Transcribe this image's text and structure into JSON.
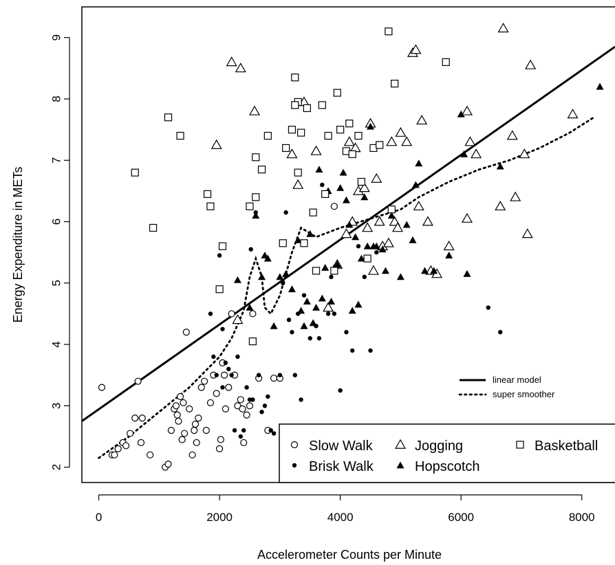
{
  "chart_data": {
    "type": "scatter",
    "title": "",
    "xlabel": "Accelerometer Counts per Minute",
    "ylabel": "Energy Expenditure in METs",
    "xlim": [
      -280,
      8550
    ],
    "ylim": [
      1.75,
      9.5
    ],
    "x_ticks": [
      0,
      2000,
      4000,
      6000,
      8000
    ],
    "x_tick_labels": [
      "0",
      "2000",
      "4000",
      "6000",
      "8000"
    ],
    "y_ticks": [
      2,
      3,
      4,
      5,
      6,
      7,
      8,
      9
    ],
    "y_tick_labels": [
      "2",
      "3",
      "4",
      "5",
      "6",
      "7",
      "8",
      "9"
    ],
    "grid": false,
    "series": [
      {
        "name": "Slow Walk",
        "marker": "open-circle",
        "points": [
          [
            50,
            3.3
          ],
          [
            220,
            2.2
          ],
          [
            260,
            2.2
          ],
          [
            320,
            2.3
          ],
          [
            400,
            2.4
          ],
          [
            450,
            2.35
          ],
          [
            520,
            2.55
          ],
          [
            600,
            2.8
          ],
          [
            650,
            3.4
          ],
          [
            700,
            2.4
          ],
          [
            720,
            2.8
          ],
          [
            850,
            2.2
          ],
          [
            1100,
            2.0
          ],
          [
            1150,
            2.05
          ],
          [
            1200,
            2.6
          ],
          [
            1250,
            2.95
          ],
          [
            1280,
            3.0
          ],
          [
            1300,
            2.85
          ],
          [
            1320,
            2.75
          ],
          [
            1350,
            3.15
          ],
          [
            1380,
            2.45
          ],
          [
            1400,
            3.05
          ],
          [
            1420,
            2.55
          ],
          [
            1450,
            4.2
          ],
          [
            1500,
            2.95
          ],
          [
            1550,
            2.2
          ],
          [
            1580,
            2.6
          ],
          [
            1600,
            2.7
          ],
          [
            1620,
            2.4
          ],
          [
            1650,
            2.8
          ],
          [
            1700,
            3.3
          ],
          [
            1750,
            3.4
          ],
          [
            1780,
            2.6
          ],
          [
            1850,
            3.05
          ],
          [
            1900,
            3.5
          ],
          [
            1950,
            3.2
          ],
          [
            2000,
            2.3
          ],
          [
            2020,
            2.45
          ],
          [
            2050,
            3.7
          ],
          [
            2080,
            3.5
          ],
          [
            2100,
            2.95
          ],
          [
            2150,
            3.3
          ],
          [
            2200,
            4.5
          ],
          [
            2250,
            3.5
          ],
          [
            2300,
            3.0
          ],
          [
            2350,
            3.1
          ],
          [
            2380,
            2.95
          ],
          [
            2400,
            2.4
          ],
          [
            2450,
            2.85
          ],
          [
            2500,
            3.0
          ],
          [
            2550,
            4.5
          ],
          [
            2650,
            3.45
          ],
          [
            2800,
            2.6
          ],
          [
            2900,
            3.45
          ],
          [
            3000,
            3.45
          ],
          [
            3900,
            6.25
          ]
        ]
      },
      {
        "name": "Brisk Walk",
        "marker": "filled-circle",
        "points": [
          [
            1850,
            4.5
          ],
          [
            1900,
            3.8
          ],
          [
            1950,
            3.5
          ],
          [
            2050,
            3.3
          ],
          [
            2100,
            3.7
          ],
          [
            2150,
            3.6
          ],
          [
            2200,
            3.5
          ],
          [
            2250,
            2.6
          ],
          [
            2300,
            3.8
          ],
          [
            2350,
            2.5
          ],
          [
            2400,
            2.6
          ],
          [
            2450,
            3.3
          ],
          [
            2500,
            3.1
          ],
          [
            2520,
            5.55
          ],
          [
            2550,
            3.1
          ],
          [
            2600,
            6.15
          ],
          [
            2650,
            3.5
          ],
          [
            2700,
            2.9
          ],
          [
            2750,
            3.0
          ],
          [
            2800,
            3.15
          ],
          [
            2850,
            2.6
          ],
          [
            2900,
            2.55
          ],
          [
            3000,
            3.5
          ],
          [
            3050,
            5.0
          ],
          [
            3100,
            6.15
          ],
          [
            3150,
            4.4
          ],
          [
            3200,
            4.2
          ],
          [
            3250,
            3.5
          ],
          [
            3300,
            4.5
          ],
          [
            3350,
            3.1
          ],
          [
            3400,
            4.8
          ],
          [
            3500,
            4.1
          ],
          [
            3600,
            4.3
          ],
          [
            3650,
            4.1
          ],
          [
            3700,
            6.6
          ],
          [
            3800,
            4.5
          ],
          [
            3850,
            5.1
          ],
          [
            3900,
            4.5
          ],
          [
            4000,
            3.25
          ],
          [
            4100,
            4.2
          ],
          [
            4200,
            3.9
          ],
          [
            4300,
            5.6
          ],
          [
            4400,
            5.1
          ],
          [
            4500,
            3.9
          ],
          [
            4600,
            5.5
          ],
          [
            6450,
            4.6
          ],
          [
            6650,
            4.2
          ],
          [
            2000,
            5.45
          ],
          [
            2050,
            4.25
          ]
        ]
      },
      {
        "name": "Jogging",
        "marker": "open-triangle",
        "points": [
          [
            1950,
            7.25
          ],
          [
            2200,
            8.6
          ],
          [
            2350,
            8.5
          ],
          [
            2580,
            7.8
          ],
          [
            3200,
            7.1
          ],
          [
            3300,
            6.6
          ],
          [
            3400,
            7.95
          ],
          [
            3600,
            7.15
          ],
          [
            3800,
            4.6
          ],
          [
            3950,
            5.3
          ],
          [
            4100,
            5.8
          ],
          [
            4150,
            7.3
          ],
          [
            4200,
            6.0
          ],
          [
            4250,
            7.2
          ],
          [
            4300,
            6.5
          ],
          [
            4400,
            6.55
          ],
          [
            4450,
            5.9
          ],
          [
            4500,
            7.6
          ],
          [
            4550,
            5.2
          ],
          [
            4600,
            6.7
          ],
          [
            4650,
            6.0
          ],
          [
            4700,
            5.6
          ],
          [
            4800,
            5.65
          ],
          [
            4850,
            7.3
          ],
          [
            4900,
            6.0
          ],
          [
            4950,
            5.9
          ],
          [
            5000,
            7.45
          ],
          [
            5100,
            7.3
          ],
          [
            5200,
            8.75
          ],
          [
            5250,
            8.8
          ],
          [
            5300,
            6.25
          ],
          [
            5350,
            7.65
          ],
          [
            5450,
            6.0
          ],
          [
            5500,
            5.2
          ],
          [
            5600,
            5.15
          ],
          [
            5800,
            5.6
          ],
          [
            6100,
            6.05
          ],
          [
            6150,
            7.3
          ],
          [
            6250,
            7.1
          ],
          [
            6650,
            6.25
          ],
          [
            6700,
            9.15
          ],
          [
            6850,
            7.4
          ],
          [
            6900,
            6.4
          ],
          [
            7050,
            7.1
          ],
          [
            7100,
            5.8
          ],
          [
            7150,
            8.55
          ],
          [
            7850,
            7.75
          ],
          [
            2300,
            4.4
          ],
          [
            6100,
            7.8
          ]
        ]
      },
      {
        "name": "Hopscotch",
        "marker": "filled-triangle",
        "points": [
          [
            2500,
            4.6
          ],
          [
            2600,
            6.1
          ],
          [
            2700,
            5.1
          ],
          [
            2750,
            5.45
          ],
          [
            2800,
            5.4
          ],
          [
            2900,
            4.3
          ],
          [
            3000,
            5.1
          ],
          [
            3100,
            5.15
          ],
          [
            3200,
            4.9
          ],
          [
            3300,
            5.7
          ],
          [
            3350,
            4.55
          ],
          [
            3400,
            4.3
          ],
          [
            3450,
            4.7
          ],
          [
            3500,
            5.8
          ],
          [
            3550,
            4.35
          ],
          [
            3600,
            4.6
          ],
          [
            3650,
            6.85
          ],
          [
            3700,
            4.75
          ],
          [
            3750,
            5.25
          ],
          [
            3800,
            6.5
          ],
          [
            3850,
            4.7
          ],
          [
            3900,
            5.25
          ],
          [
            3950,
            5.3
          ],
          [
            4000,
            6.55
          ],
          [
            4050,
            6.8
          ],
          [
            4100,
            6.35
          ],
          [
            4150,
            5.95
          ],
          [
            4200,
            4.55
          ],
          [
            4250,
            5.75
          ],
          [
            4300,
            4.65
          ],
          [
            4350,
            5.4
          ],
          [
            4400,
            6.4
          ],
          [
            4450,
            5.6
          ],
          [
            4500,
            7.55
          ],
          [
            4550,
            5.6
          ],
          [
            4600,
            5.6
          ],
          [
            4700,
            5.55
          ],
          [
            4750,
            5.2
          ],
          [
            4850,
            6.1
          ],
          [
            5000,
            5.1
          ],
          [
            5100,
            5.95
          ],
          [
            5200,
            5.7
          ],
          [
            5250,
            6.6
          ],
          [
            5300,
            6.95
          ],
          [
            5400,
            5.2
          ],
          [
            5550,
            5.2
          ],
          [
            5800,
            5.45
          ],
          [
            6050,
            7.1
          ],
          [
            6100,
            5.15
          ],
          [
            6000,
            7.75
          ],
          [
            6650,
            6.9
          ],
          [
            8300,
            8.2
          ],
          [
            2300,
            5.05
          ]
        ]
      },
      {
        "name": "Basketball",
        "marker": "open-square",
        "points": [
          [
            600,
            6.8
          ],
          [
            900,
            5.9
          ],
          [
            1150,
            7.7
          ],
          [
            1350,
            7.4
          ],
          [
            1800,
            6.45
          ],
          [
            1850,
            6.25
          ],
          [
            2000,
            4.9
          ],
          [
            2050,
            5.6
          ],
          [
            2500,
            6.25
          ],
          [
            2550,
            4.05
          ],
          [
            2600,
            6.4
          ],
          [
            2600,
            7.05
          ],
          [
            2700,
            6.85
          ],
          [
            2800,
            7.4
          ],
          [
            3050,
            5.65
          ],
          [
            3100,
            7.2
          ],
          [
            3200,
            7.5
          ],
          [
            3250,
            8.35
          ],
          [
            3300,
            6.8
          ],
          [
            3300,
            7.95
          ],
          [
            3350,
            7.45
          ],
          [
            3400,
            5.65
          ],
          [
            3450,
            7.85
          ],
          [
            3550,
            6.15
          ],
          [
            3600,
            5.2
          ],
          [
            3700,
            7.9
          ],
          [
            3750,
            6.45
          ],
          [
            3800,
            7.4
          ],
          [
            3900,
            5.2
          ],
          [
            3950,
            8.1
          ],
          [
            4000,
            7.5
          ],
          [
            4100,
            7.15
          ],
          [
            4150,
            7.6
          ],
          [
            4200,
            7.1
          ],
          [
            4300,
            7.4
          ],
          [
            4350,
            6.65
          ],
          [
            4450,
            5.4
          ],
          [
            4550,
            7.2
          ],
          [
            4650,
            7.25
          ],
          [
            4800,
            9.1
          ],
          [
            4850,
            6.2
          ],
          [
            4900,
            8.25
          ],
          [
            5750,
            8.6
          ],
          [
            3250,
            7.9
          ]
        ]
      }
    ],
    "lines": [
      {
        "name": "linear model",
        "style": "solid",
        "points": [
          [
            -280,
            2.75
          ],
          [
            8550,
            8.85
          ]
        ]
      },
      {
        "name": "super smoother",
        "style": "dotted",
        "points": [
          [
            0,
            2.15
          ],
          [
            500,
            2.5
          ],
          [
            1000,
            2.9
          ],
          [
            1500,
            3.3
          ],
          [
            1800,
            3.6
          ],
          [
            2000,
            3.8
          ],
          [
            2200,
            4.1
          ],
          [
            2400,
            4.55
          ],
          [
            2500,
            5.1
          ],
          [
            2600,
            5.4
          ],
          [
            2700,
            5.1
          ],
          [
            2750,
            4.6
          ],
          [
            2850,
            4.5
          ],
          [
            3000,
            4.8
          ],
          [
            3200,
            5.5
          ],
          [
            3350,
            5.9
          ],
          [
            3600,
            5.75
          ],
          [
            4000,
            5.9
          ],
          [
            4500,
            6.05
          ],
          [
            5000,
            6.2
          ],
          [
            5300,
            6.4
          ],
          [
            5800,
            6.65
          ],
          [
            6300,
            6.85
          ],
          [
            6800,
            7.0
          ],
          [
            7300,
            7.2
          ],
          [
            7800,
            7.45
          ],
          [
            8200,
            7.7
          ]
        ]
      }
    ],
    "legend": {
      "placement": "bottom-right",
      "entries": [
        {
          "label": "Slow Walk",
          "marker": "open-circle"
        },
        {
          "label": "Jogging",
          "marker": "open-triangle"
        },
        {
          "label": "Basketball",
          "marker": "open-square"
        },
        {
          "label": "Brisk Walk",
          "marker": "filled-circle"
        },
        {
          "label": "Hopscotch",
          "marker": "filled-triangle"
        }
      ],
      "line_entries": [
        {
          "label": "linear model",
          "style": "solid"
        },
        {
          "label": "super smoother",
          "style": "dotted"
        }
      ]
    }
  }
}
